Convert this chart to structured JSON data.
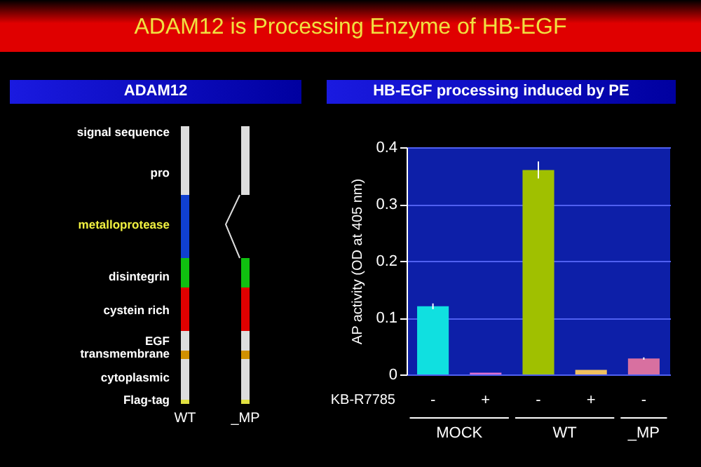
{
  "chart_data": [
    {
      "type": "other",
      "title": "ADAM12",
      "annotations": [
        "ADAM12 is Processing Enzyme of HB-EGF",
        "signal sequence",
        "pro",
        "metalloprotease",
        "disintegrin",
        "cystein rich",
        "EGF",
        "transmembrane",
        "cytoplasmic",
        "Flag-tag",
        "WT",
        "_MP"
      ]
    },
    {
      "type": "bar",
      "title": "HB-EGF processing induced by PE",
      "ylabel": "AP activity (OD at 405 nm)",
      "categories": [
        "-",
        "+",
        "-",
        "+",
        "-"
      ],
      "values": [
        0.12,
        0.003,
        0.36,
        0.008,
        0.028
      ],
      "colors": [
        "#10e0e0",
        "#e070d0",
        "#a0c000",
        "#f0c060",
        "#d870a0"
      ],
      "errors": [
        0.005,
        null,
        0.015,
        null,
        0.002
      ],
      "ylim": [
        0,
        0.4
      ],
      "yticks": [
        0,
        0.1,
        0.2,
        0.3,
        0.4
      ],
      "grid": "y",
      "annotations": [
        "KB-R7785",
        "MOCK",
        "WT",
        "_MP"
      ]
    }
  ]
}
